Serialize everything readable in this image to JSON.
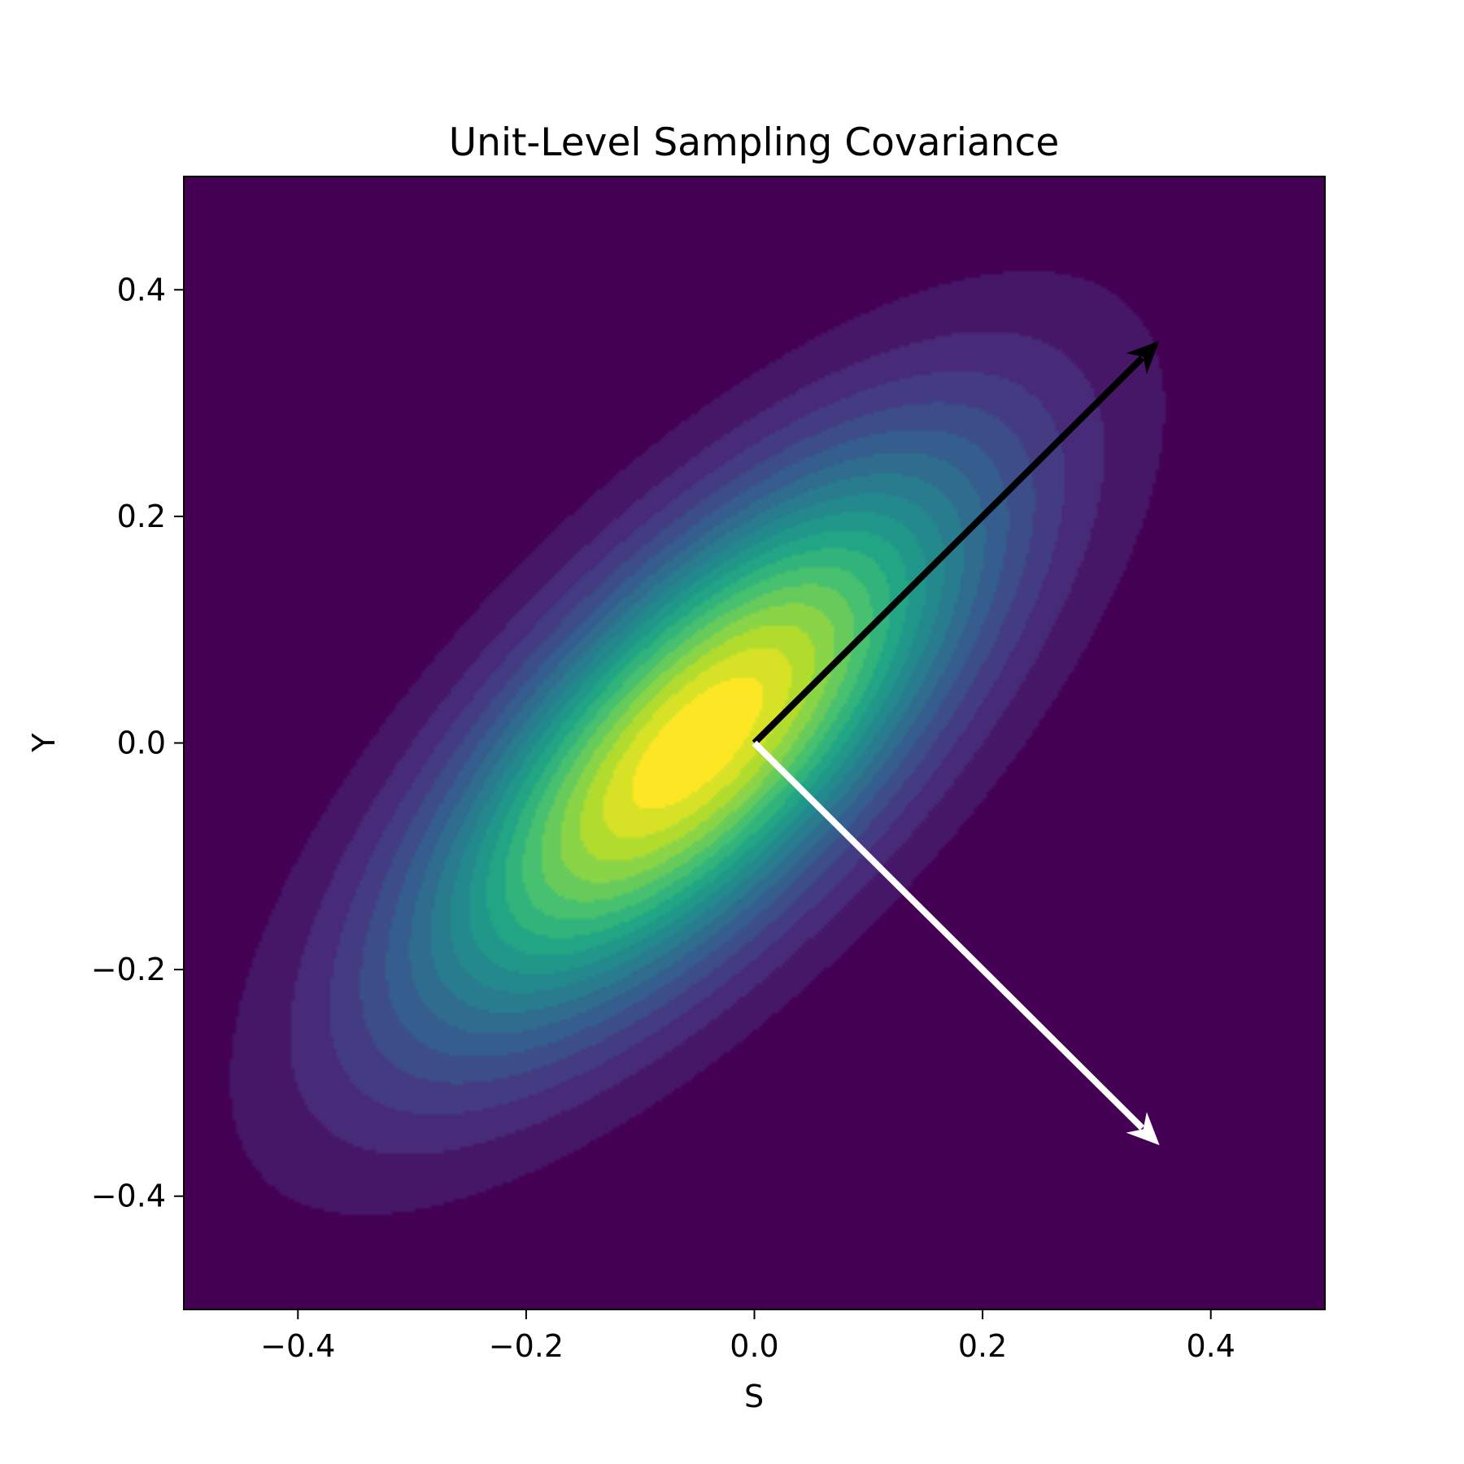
{
  "chart_data": {
    "type": "contour",
    "title": "Unit-Level Sampling Covariance",
    "xlabel": "S",
    "ylabel": "Y",
    "xlim": [
      -0.5,
      0.5
    ],
    "ylim": [
      -0.5,
      0.5
    ],
    "x_ticks": [
      -0.4,
      -0.2,
      0.0,
      0.2,
      0.4
    ],
    "y_ticks": [
      -0.4,
      -0.2,
      0.0,
      0.2,
      0.4
    ],
    "x_tick_labels": [
      "−0.4",
      "−0.2",
      "0.0",
      "0.2",
      "0.4"
    ],
    "y_tick_labels": [
      "−0.4",
      "−0.2",
      "0.0",
      "0.2",
      "0.4"
    ],
    "colormap": "viridis",
    "grid": false,
    "density": {
      "center": [
        -0.05,
        0.0
      ],
      "covariance": [
        [
          0.029,
          0.021
        ],
        [
          0.021,
          0.03
        ]
      ],
      "levels": 18
    },
    "arrows": [
      {
        "name": "black-arrow",
        "from": [
          0.0,
          0.0
        ],
        "to": [
          0.355,
          0.355
        ],
        "color": "#000000"
      },
      {
        "name": "white-arrow",
        "from": [
          0.0,
          0.0
        ],
        "to": [
          0.355,
          -0.355
        ],
        "color": "#ffffff"
      }
    ]
  }
}
